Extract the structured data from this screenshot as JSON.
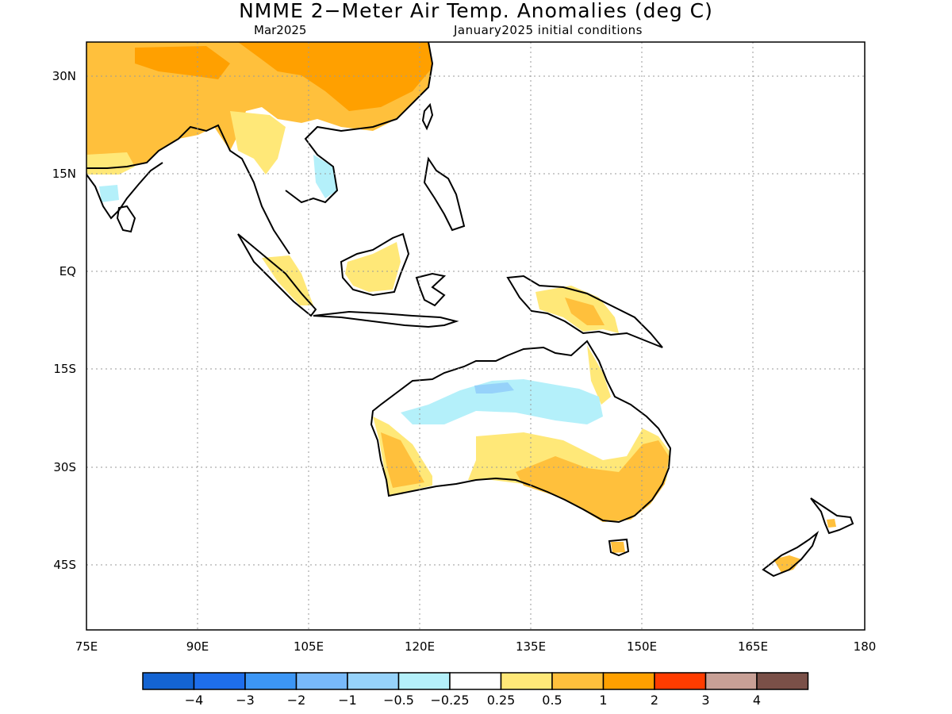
{
  "map": {
    "title": "NMME 2−Meter Air Temp. Anomalies (deg C)",
    "subtitle_left": "Mar2025",
    "subtitle_right": "January2025 initial conditions",
    "lon_range": [
      75,
      180
    ],
    "lat_range": [
      -55,
      35
    ],
    "lon_ticks": [
      {
        "value": 75,
        "label": "75E"
      },
      {
        "value": 90,
        "label": "90E"
      },
      {
        "value": 105,
        "label": "105E"
      },
      {
        "value": 120,
        "label": "120E"
      },
      {
        "value": 135,
        "label": "135E"
      },
      {
        "value": 150,
        "label": "150E"
      },
      {
        "value": 165,
        "label": "165E"
      },
      {
        "value": 180,
        "label": "180"
      }
    ],
    "lat_ticks": [
      {
        "value": 30,
        "label": "30N"
      },
      {
        "value": 15,
        "label": "15N"
      },
      {
        "value": 0,
        "label": "EQ"
      },
      {
        "value": -15,
        "label": "15S"
      },
      {
        "value": -30,
        "label": "30S"
      },
      {
        "value": -45,
        "label": "45S"
      }
    ],
    "gridlines": "dotted"
  },
  "colorbar": {
    "colors": [
      "#1464d2",
      "#1e6eeb",
      "#3c96f5",
      "#78b9fa",
      "#96d2fa",
      "#b4f0fa",
      "#ffffff",
      "#ffe878",
      "#ffc03c",
      "#ffa000",
      "#ff3c00",
      "#c8a096",
      "#7a5048"
    ],
    "labels": [
      "−4",
      "−3",
      "−2",
      "−1",
      "−0.5",
      "−0.25",
      "0.25",
      "0.5",
      "1",
      "2",
      "3",
      "4"
    ]
  }
}
